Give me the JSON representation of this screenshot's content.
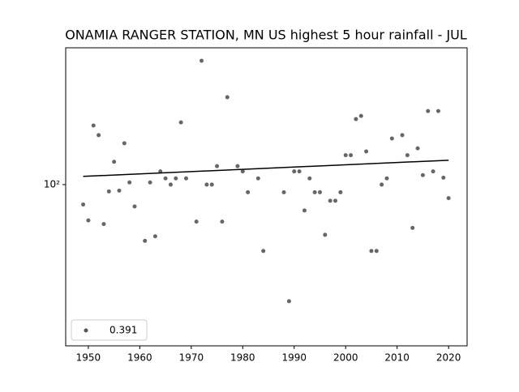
{
  "chart_data": {
    "type": "scatter",
    "title": "ONAMIA RANGER STATION, MN US highest 5 hour rainfall - JUL",
    "log_y": true,
    "legend": "lower left",
    "xlim": [
      1945.6,
      2023.6
    ],
    "xticks": [
      1950,
      1960,
      1970,
      1980,
      1990,
      2000,
      2010,
      2020
    ],
    "ylim": [
      10.8,
      661
    ],
    "yticks": [
      {
        "value": 100,
        "label": "10²"
      }
    ],
    "series": [
      {
        "name": "0.391",
        "color": "#555555",
        "x": [
          1949,
          1950,
          1951,
          1952,
          1953,
          1954,
          1955,
          1956,
          1957,
          1958,
          1959,
          1961,
          1962,
          1963,
          1964,
          1965,
          1966,
          1967,
          1968,
          1969,
          1971,
          1972,
          1973,
          1974,
          1975,
          1976,
          1977,
          1979,
          1980,
          1981,
          1983,
          1984,
          1988,
          1989,
          1990,
          1991,
          1992,
          1993,
          1994,
          1995,
          1996,
          1997,
          1998,
          1999,
          2000,
          2001,
          2002,
          2003,
          2004,
          2005,
          2006,
          2007,
          2008,
          2009,
          2011,
          2012,
          2013,
          2014,
          2015,
          2016,
          2017,
          2018,
          2019,
          2020
        ],
        "values": [
          76,
          61,
          226,
          198,
          58,
          91,
          137,
          92,
          177,
          103,
          74,
          46,
          103,
          49,
          120,
          109,
          100,
          109,
          236,
          109,
          60,
          553,
          100,
          100,
          129,
          60,
          334,
          129,
          120,
          90,
          109,
          40,
          90,
          20,
          120,
          120,
          70,
          109,
          90,
          90,
          50,
          80,
          80,
          90,
          150,
          150,
          247,
          258,
          158,
          40,
          40,
          100,
          109,
          189,
          198,
          150,
          55,
          165,
          114,
          276,
          120,
          276,
          110,
          83
        ]
      }
    ],
    "trend": {
      "color": "#000000",
      "x": [
        1949,
        2020
      ],
      "values": [
        112,
        140
      ]
    }
  }
}
